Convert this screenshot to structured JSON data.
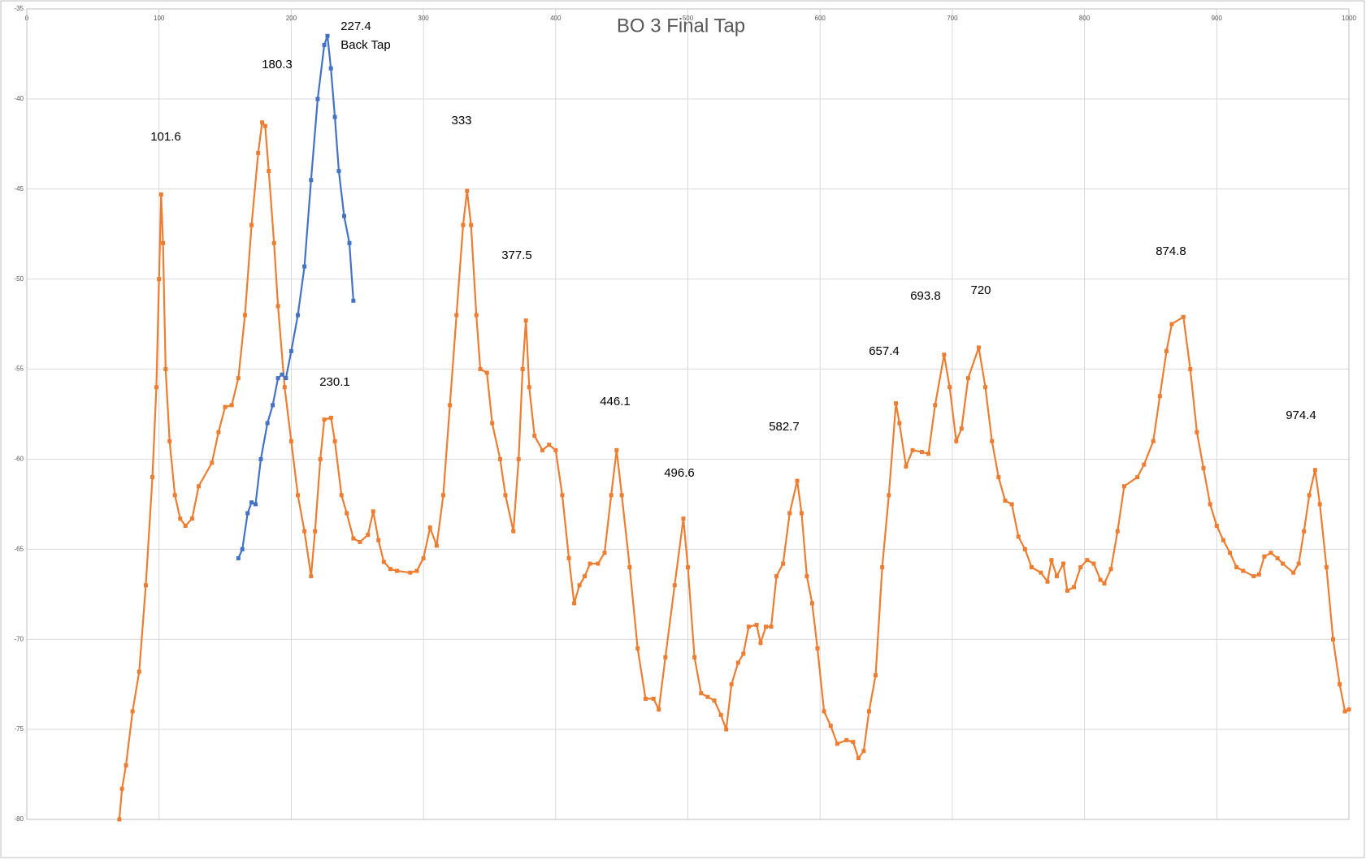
{
  "chart_data": {
    "type": "line",
    "title": "BO 3 Final Tap",
    "xlim": [
      0,
      1000
    ],
    "xticks": [
      0,
      100,
      200,
      300,
      400,
      500,
      600,
      700,
      800,
      900,
      1000
    ],
    "ylim": [
      -80,
      -35
    ],
    "yticks": [
      -35,
      -40,
      -45,
      -50,
      -55,
      -60,
      -65,
      -70,
      -75,
      -80
    ],
    "grid": true,
    "series": [
      {
        "color": "#ed7d31",
        "x": [
          70,
          72,
          75,
          80,
          85,
          90,
          95,
          98,
          100,
          101.6,
          103,
          105,
          108,
          112,
          116,
          120,
          125,
          130,
          140,
          145,
          150,
          155,
          160,
          165,
          170,
          175,
          178,
          180.3,
          183,
          187,
          190,
          195,
          200,
          205,
          210,
          215,
          218,
          222,
          225,
          230.1,
          233,
          238,
          242,
          247,
          252,
          258,
          262,
          266,
          270,
          275,
          280,
          290,
          295,
          300,
          305,
          310,
          315,
          320,
          325,
          330,
          333,
          336,
          340,
          343,
          348,
          352,
          358,
          362,
          368,
          372,
          375,
          377.5,
          380,
          384,
          390,
          395,
          400,
          405,
          410,
          414,
          418,
          422,
          426,
          432,
          437,
          442,
          446.1,
          450,
          456,
          462,
          468,
          474,
          478,
          483,
          490,
          496.6,
          500,
          505,
          510,
          515,
          520,
          525,
          529,
          533,
          538,
          542,
          546,
          552,
          555,
          559,
          563,
          567,
          572,
          577,
          582.7,
          586,
          590,
          594,
          598,
          603,
          608,
          613,
          620,
          625,
          629,
          633,
          637,
          642,
          647,
          652,
          657.4,
          660,
          665,
          670,
          677,
          682,
          687,
          693.8,
          698,
          703,
          707,
          712,
          720,
          725,
          730,
          735,
          740,
          745,
          750,
          755,
          760,
          767,
          772,
          775,
          779,
          784,
          787,
          792,
          797,
          802,
          807,
          812,
          815,
          820,
          825,
          830,
          840,
          845,
          852,
          857,
          862,
          866,
          874.8,
          880,
          885,
          890,
          895,
          900,
          905,
          910,
          915,
          920,
          928,
          932,
          936,
          941,
          946,
          950,
          958,
          962,
          966,
          970,
          974.4,
          978,
          983,
          988,
          993,
          997,
          1000
        ],
        "values": [
          -80,
          -78.3,
          -77,
          -74,
          -71.8,
          -67,
          -61,
          -56,
          -50,
          -45.3,
          -48,
          -55,
          -59,
          -62,
          -63.3,
          -63.7,
          -63.3,
          -61.5,
          -60.2,
          -58.5,
          -57.1,
          -57,
          -55.5,
          -52,
          -47,
          -43,
          -41.3,
          -41.5,
          -44,
          -48,
          -51.5,
          -56,
          -59,
          -62,
          -64,
          -66.5,
          -64,
          -60,
          -57.8,
          -57.7,
          -59,
          -62,
          -63,
          -64.4,
          -64.6,
          -64.2,
          -62.9,
          -64.5,
          -65.7,
          -66.1,
          -66.2,
          -66.3,
          -66.2,
          -65.5,
          -63.8,
          -64.8,
          -62,
          -57,
          -52,
          -47,
          -45.1,
          -47,
          -52,
          -55,
          -55.2,
          -58,
          -60,
          -62,
          -64,
          -60,
          -55,
          -52.3,
          -56,
          -58.7,
          -59.5,
          -59.2,
          -59.5,
          -62,
          -65.5,
          -68,
          -67,
          -66.5,
          -65.8,
          -65.8,
          -65.2,
          -62,
          -59.5,
          -62,
          -66,
          -70.5,
          -73.3,
          -73.3,
          -73.9,
          -71,
          -67,
          -63.3,
          -66,
          -71,
          -73,
          -73.2,
          -73.4,
          -74.2,
          -75,
          -72.5,
          -71.3,
          -70.8,
          -69.3,
          -69.2,
          -70.2,
          -69.3,
          -69.3,
          -66.5,
          -65.8,
          -63,
          -61.2,
          -63,
          -66.5,
          -68,
          -70.5,
          -74,
          -74.8,
          -75.8,
          -75.6,
          -75.7,
          -76.6,
          -76.2,
          -74,
          -72,
          -66,
          -62,
          -56.9,
          -58,
          -60.4,
          -59.5,
          -59.6,
          -59.7,
          -57,
          -54.2,
          -56,
          -59,
          -58.3,
          -55.5,
          -53.8,
          -56,
          -59,
          -61,
          -62.3,
          -62.5,
          -64.3,
          -65,
          -66,
          -66.3,
          -66.8,
          -65.6,
          -66.5,
          -65.8,
          -67.3,
          -67.1,
          -66,
          -65.6,
          -65.8,
          -66.7,
          -66.9,
          -66.1,
          -64,
          -61.5,
          -61,
          -60.3,
          -59,
          -56.5,
          -54,
          -52.5,
          -52.1,
          -55,
          -58.5,
          -60.5,
          -62.5,
          -63.7,
          -64.5,
          -65.2,
          -66,
          -66.2,
          -66.5,
          -66.4,
          -65.4,
          -65.2,
          -65.5,
          -65.8,
          -66.3,
          -65.8,
          -64,
          -62,
          -60.6,
          -62.5,
          -66,
          -70,
          -72.5,
          -74,
          -73.9
        ]
      },
      {
        "color": "#4472c4",
        "x": [
          160,
          163,
          167,
          170,
          173,
          177,
          182,
          186,
          190,
          193,
          196,
          200,
          205,
          210,
          215,
          220,
          225,
          227.4,
          230,
          233,
          236,
          240,
          244,
          247
        ],
        "values": [
          -65.5,
          -65,
          -63,
          -62.4,
          -62.5,
          -60,
          -58,
          -57,
          -55.5,
          -55.3,
          -55.5,
          -54,
          -52,
          -49.3,
          -44.5,
          -40,
          -37,
          -36.5,
          -38.3,
          -41,
          -44,
          -46.5,
          -48,
          -51.2
        ]
      }
    ],
    "annotations": [
      "101.6",
      "180.3",
      "227.4",
      "Back Tap",
      "333",
      "377.5",
      "230.1",
      "446.1",
      "496.6",
      "582.7",
      "657.4",
      "693.8",
      "720",
      "874.8",
      "974.4"
    ]
  }
}
